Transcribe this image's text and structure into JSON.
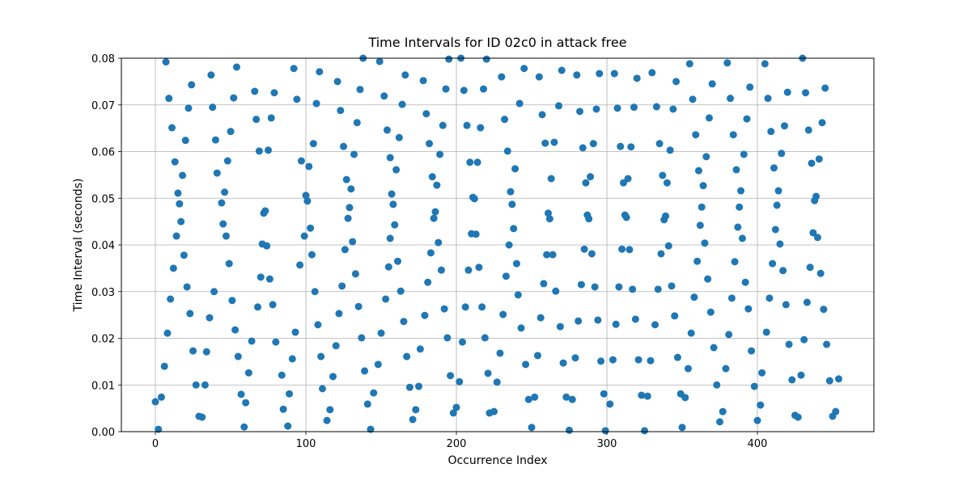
{
  "chart_data": {
    "type": "scatter",
    "title": "Time Intervals for ID 02c0 in attack free",
    "x_label": "Occurrence Index",
    "y_label": "Time Interval (seconds)",
    "color": "#1f77b4",
    "grid": true,
    "xlim": [
      -22.6,
      477.4
    ],
    "ylim": [
      0,
      0.08
    ],
    "xticks": [
      0,
      100,
      200,
      300,
      400
    ],
    "yticks": [
      {
        "value": 0,
        "label": "0.00"
      },
      {
        "value": 0.01,
        "label": "0.01"
      },
      {
        "value": 0.02,
        "label": "0.02"
      },
      {
        "value": 0.03,
        "label": "0.03"
      },
      {
        "value": 0.04,
        "label": "0.04"
      },
      {
        "value": 0.05,
        "label": "0.05"
      },
      {
        "value": 0.06,
        "label": "0.06"
      },
      {
        "value": 0.07,
        "label": "0.07"
      },
      {
        "value": 0.08,
        "label": "0.08"
      }
    ],
    "x": [
      0,
      2,
      4,
      6,
      7,
      8,
      9,
      10,
      11,
      12,
      13,
      14,
      15,
      16,
      17,
      18,
      19,
      20,
      21,
      22,
      23,
      24,
      25,
      27,
      29,
      31,
      33,
      34,
      36,
      37,
      38,
      39,
      40,
      41,
      44,
      45,
      46,
      47,
      48,
      49,
      50,
      51,
      52,
      53,
      54,
      55,
      57,
      59,
      60,
      62,
      64,
      66,
      67,
      68,
      69,
      70,
      71,
      72,
      73,
      74,
      75,
      76,
      77,
      78,
      79,
      80,
      84,
      85,
      88,
      89,
      91,
      92,
      93,
      94,
      96,
      97,
      99,
      100,
      101,
      102,
      103,
      104,
      105,
      106,
      107,
      108,
      109,
      110,
      111,
      114,
      116,
      118,
      120,
      121,
      122,
      123,
      124,
      125,
      126,
      127,
      128,
      129,
      130,
      131,
      132,
      133,
      134,
      135,
      136,
      137,
      138,
      139,
      141,
      143,
      145,
      148,
      149,
      150,
      152,
      153,
      154,
      155,
      156,
      156,
      157,
      158,
      159,
      160,
      161,
      162,
      163,
      164,
      165,
      166,
      167,
      169,
      171,
      173,
      175,
      176,
      178,
      179,
      180,
      181,
      182,
      183,
      184,
      185,
      186,
      187,
      188,
      189,
      190,
      191,
      192,
      193,
      194,
      195,
      196,
      198,
      200,
      202,
      203,
      204,
      205,
      206,
      207,
      208,
      209,
      210,
      211,
      212,
      213,
      214,
      215,
      216,
      217,
      218,
      219,
      220,
      221,
      222,
      225,
      227,
      229,
      230,
      231,
      232,
      233,
      234,
      235,
      236,
      237,
      238,
      239,
      240,
      241,
      242,
      243,
      245,
      246,
      248,
      250,
      252,
      254,
      255,
      256,
      257,
      258,
      259,
      260,
      261,
      262,
      263,
      264,
      265,
      266,
      268,
      269,
      270,
      271,
      273,
      275,
      277,
      279,
      280,
      281,
      282,
      283,
      284,
      285,
      286,
      287,
      288,
      289,
      290,
      291,
      292,
      293,
      294,
      295,
      296,
      298,
      299,
      302,
      304,
      305,
      306,
      307,
      308,
      309,
      310,
      311,
      312,
      313,
      314,
      315,
      316,
      317,
      318,
      319,
      320,
      321,
      323,
      325,
      327,
      329,
      330,
      332,
      333,
      334,
      335,
      336,
      337,
      338,
      339,
      340,
      341,
      342,
      343,
      344,
      345,
      346,
      347,
      349,
      350,
      352,
      354,
      355,
      356,
      357,
      358,
      359,
      360,
      361,
      362,
      363,
      364,
      365,
      366,
      367,
      368,
      369,
      370,
      371,
      373,
      375,
      377,
      379,
      380,
      381,
      382,
      383,
      384,
      385,
      386,
      387,
      388,
      389,
      390,
      391,
      392,
      393,
      394,
      395,
      396,
      398,
      400,
      402,
      403,
      405,
      406,
      407,
      408,
      409,
      410,
      411,
      412,
      413,
      414,
      415,
      416,
      417,
      418,
      419,
      420,
      421,
      423,
      425,
      427,
      429,
      430,
      431,
      432,
      433,
      434,
      435,
      436,
      437,
      438,
      439,
      440,
      441,
      442,
      443,
      444,
      445,
      446,
      448,
      450,
      452,
      454
    ],
    "y": [
      0.0064,
      0.0005,
      0.0074,
      0.014,
      0.0792,
      0.0211,
      0.0714,
      0.0284,
      0.0651,
      0.035,
      0.0578,
      0.0419,
      0.0511,
      0.0488,
      0.045,
      0.0549,
      0.0378,
      0.0624,
      0.031,
      0.0693,
      0.0253,
      0.0743,
      0.0173,
      0.01,
      0.0033,
      0.0031,
      0.01,
      0.0171,
      0.0244,
      0.0764,
      0.0695,
      0.03,
      0.0625,
      0.0554,
      0.049,
      0.0445,
      0.0513,
      0.0419,
      0.058,
      0.036,
      0.0643,
      0.0281,
      0.0715,
      0.0218,
      0.0781,
      0.0161,
      0.008,
      0.001,
      0.0062,
      0.0126,
      0.0194,
      0.0729,
      0.0669,
      0.0267,
      0.0601,
      0.0331,
      0.0402,
      0.0468,
      0.0473,
      0.0398,
      0.0603,
      0.0327,
      0.0672,
      0.0272,
      0.0726,
      0.0192,
      0.0121,
      0.0048,
      0.0012,
      0.0081,
      0.0156,
      0.0778,
      0.0213,
      0.0712,
      0.0357,
      0.058,
      0.0419,
      0.0506,
      0.0494,
      0.0568,
      0.0436,
      0.0379,
      0.0617,
      0.03,
      0.0703,
      0.0229,
      0.0771,
      0.0161,
      0.0092,
      0.0024,
      0.0047,
      0.0118,
      0.0184,
      0.075,
      0.0253,
      0.0688,
      0.0312,
      0.0611,
      0.039,
      0.054,
      0.0457,
      0.048,
      0.052,
      0.0407,
      0.0594,
      0.0338,
      0.0662,
      0.0268,
      0.0733,
      0.0201,
      0.08,
      0.013,
      0.0059,
      0.0005,
      0.0083,
      0.0144,
      0.0793,
      0.0211,
      0.0719,
      0.0284,
      0.0646,
      0.0353,
      0.0587,
      0.0414,
      0.0509,
      0.0487,
      0.0443,
      0.0561,
      0.0365,
      0.063,
      0.0301,
      0.0701,
      0.0236,
      0.0764,
      0.0161,
      0.0095,
      0.0026,
      0.0047,
      0.0097,
      0.0177,
      0.0752,
      0.0249,
      0.0681,
      0.032,
      0.0617,
      0.0383,
      0.0546,
      0.0457,
      0.0471,
      0.0528,
      0.0405,
      0.0594,
      0.0346,
      0.0656,
      0.0263,
      0.0734,
      0.0201,
      0.0798,
      0.012,
      0.004,
      0.0052,
      0.0107,
      0.08,
      0.0192,
      0.0731,
      0.0267,
      0.0656,
      0.0346,
      0.0577,
      0.0424,
      0.0502,
      0.0499,
      0.0423,
      0.0577,
      0.0352,
      0.0651,
      0.0267,
      0.0734,
      0.0201,
      0.0798,
      0.0125,
      0.004,
      0.0043,
      0.0106,
      0.0168,
      0.076,
      0.0251,
      0.0669,
      0.0333,
      0.0601,
      0.04,
      0.0514,
      0.0487,
      0.0435,
      0.0563,
      0.036,
      0.0293,
      0.0703,
      0.0222,
      0.0778,
      0.0144,
      0.0069,
      0.0009,
      0.0074,
      0.0163,
      0.076,
      0.0244,
      0.0679,
      0.0317,
      0.0618,
      0.0379,
      0.0468,
      0.0456,
      0.0542,
      0.0379,
      0.062,
      0.0301,
      0.0698,
      0.0225,
      0.0774,
      0.0147,
      0.0074,
      0.0003,
      0.0069,
      0.0158,
      0.0764,
      0.0237,
      0.0686,
      0.0315,
      0.0608,
      0.0391,
      0.0533,
      0.0464,
      0.0456,
      0.0546,
      0.0381,
      0.0617,
      0.031,
      0.0691,
      0.0239,
      0.0767,
      0.0151,
      0.0081,
      0.0002,
      0.0059,
      0.0154,
      0.0767,
      0.023,
      0.0693,
      0.031,
      0.0611,
      0.0391,
      0.0533,
      0.0464,
      0.0459,
      0.0542,
      0.039,
      0.061,
      0.0305,
      0.0695,
      0.0241,
      0.0757,
      0.0154,
      0.0078,
      0.0002,
      0.0076,
      0.0152,
      0.0769,
      0.0229,
      0.0696,
      0.0305,
      0.0617,
      0.0381,
      0.0549,
      0.0454,
      0.0462,
      0.0533,
      0.0398,
      0.0603,
      0.0312,
      0.0691,
      0.0248,
      0.075,
      0.0159,
      0.0081,
      0.0009,
      0.0073,
      0.0135,
      0.0788,
      0.0211,
      0.0712,
      0.0288,
      0.0636,
      0.0365,
      0.0559,
      0.0442,
      0.0481,
      0.0527,
      0.0404,
      0.0589,
      0.0327,
      0.0672,
      0.0256,
      0.0745,
      0.018,
      0.01,
      0.0021,
      0.0043,
      0.0135,
      0.079,
      0.0208,
      0.0714,
      0.0286,
      0.0636,
      0.0364,
      0.0561,
      0.0438,
      0.0481,
      0.0516,
      0.0414,
      0.0594,
      0.032,
      0.067,
      0.0263,
      0.0738,
      0.0173,
      0.0097,
      0.0024,
      0.0057,
      0.0126,
      0.0788,
      0.0213,
      0.0714,
      0.0286,
      0.0643,
      0.036,
      0.0565,
      0.0433,
      0.0485,
      0.0516,
      0.0402,
      0.0596,
      0.0345,
      0.0655,
      0.0272,
      0.0727,
      0.0187,
      0.0111,
      0.0035,
      0.0031,
      0.0121,
      0.08,
      0.0197,
      0.0726,
      0.0277,
      0.0646,
      0.0352,
      0.0575,
      0.0426,
      0.0495,
      0.0504,
      0.0416,
      0.0584,
      0.0339,
      0.0662,
      0.0262,
      0.0736,
      0.0187,
      0.0109,
      0.0033,
      0.0043,
      0.0113
    ]
  }
}
